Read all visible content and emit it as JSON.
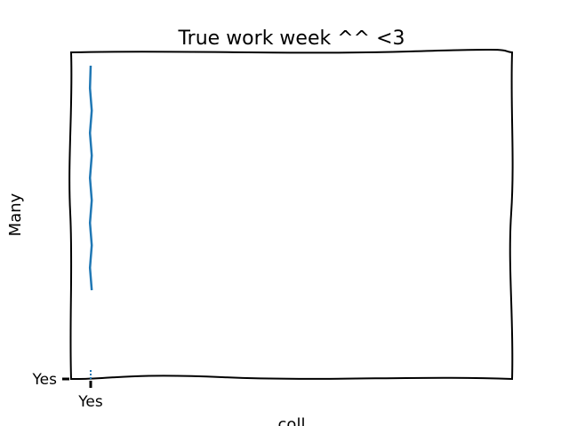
{
  "chart_data": {
    "type": "bar",
    "title": "True work week ^^ <3",
    "xlabel": "coll",
    "ylabel": "Many",
    "categories": [
      "Yes"
    ],
    "x_tick_labels": [
      "Yes"
    ],
    "y_tick_labels": [
      "Yes"
    ],
    "series": [
      {
        "values": [
          1
        ]
      }
    ],
    "error_bar": {
      "category": "Yes",
      "visible": true
    },
    "grid": false,
    "legend": "none",
    "colors": {
      "bar": "#1f77b4",
      "axes": "#000000"
    }
  }
}
